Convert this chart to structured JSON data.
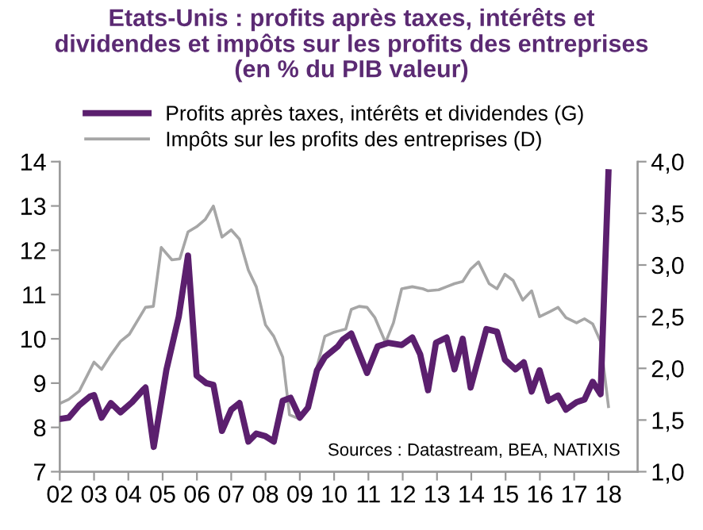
{
  "chart_data": {
    "type": "line",
    "title": "Etats-Unis : profits après taxes, intérêts et\ndividendes et impôts sur les profits des entreprises\n(en % du PIB valeur)",
    "annotations": [
      "Sources : Datastream, BEA, NATIXIS"
    ],
    "legend": "top",
    "grid": false,
    "marker": "none",
    "line_style": "solid",
    "xlim": [
      2002,
      2018.85
    ],
    "xticks": [
      {
        "value": 2002,
        "label": "02"
      },
      {
        "value": 2003,
        "label": "03"
      },
      {
        "value": 2004,
        "label": "04"
      },
      {
        "value": 2005,
        "label": "05"
      },
      {
        "value": 2006,
        "label": "06"
      },
      {
        "value": 2007,
        "label": "07"
      },
      {
        "value": 2008,
        "label": "08"
      },
      {
        "value": 2009,
        "label": "09"
      },
      {
        "value": 2010,
        "label": "10"
      },
      {
        "value": 2011,
        "label": "11"
      },
      {
        "value": 2012,
        "label": "12"
      },
      {
        "value": 2013,
        "label": "13"
      },
      {
        "value": 2014,
        "label": "14"
      },
      {
        "value": 2015,
        "label": "15"
      },
      {
        "value": 2016,
        "label": "16"
      },
      {
        "value": 2017,
        "label": "17"
      },
      {
        "value": 2018,
        "label": "18"
      }
    ],
    "ylim": [
      7,
      14
    ],
    "yticks": [
      7,
      8,
      9,
      10,
      11,
      12,
      13,
      14
    ],
    "y2lim": [
      1,
      4
    ],
    "y2ticks": [
      {
        "value": 1,
        "label": "1,0"
      },
      {
        "value": 1.5,
        "label": "1,5"
      },
      {
        "value": 2,
        "label": "2,0"
      },
      {
        "value": 2.5,
        "label": "2,5"
      },
      {
        "value": 3,
        "label": "3,0"
      },
      {
        "value": 3.5,
        "label": "3,5"
      },
      {
        "value": 4,
        "label": "4,0"
      }
    ],
    "series": [
      {
        "name": "Profits après taxes, intérêts et dividendes (G)",
        "color": "#5b1f6e",
        "axis": "y",
        "x": [
          2002.0,
          2002.26,
          2002.57,
          2002.88,
          2003.0,
          2003.22,
          2003.49,
          2003.77,
          2004.11,
          2004.42,
          2004.5,
          2004.74,
          2005.11,
          2005.47,
          2005.74,
          2005.99,
          2006.27,
          2006.48,
          2006.73,
          2007.0,
          2007.24,
          2007.5,
          2007.73,
          2008.0,
          2008.24,
          2008.5,
          2008.73,
          2009.0,
          2009.24,
          2009.5,
          2009.73,
          2010.11,
          2010.25,
          2010.5,
          2010.96,
          2011.27,
          2011.58,
          2011.97,
          2012.28,
          2012.51,
          2012.74,
          2012.97,
          2013.28,
          2013.51,
          2013.75,
          2013.98,
          2014.44,
          2014.75,
          2014.98,
          2015.29,
          2015.53,
          2015.76,
          2015.99,
          2016.25,
          2016.53,
          2016.76,
          2017.07,
          2017.3,
          2017.54,
          2017.77,
          2018.0
        ],
        "values": [
          8.19,
          8.22,
          8.5,
          8.7,
          8.73,
          8.22,
          8.55,
          8.34,
          8.57,
          8.84,
          8.9,
          7.56,
          9.3,
          10.5,
          11.88,
          9.17,
          9.0,
          8.96,
          7.92,
          8.4,
          8.55,
          7.68,
          7.86,
          7.8,
          7.68,
          8.6,
          8.67,
          8.22,
          8.45,
          9.29,
          9.59,
          9.83,
          9.98,
          10.12,
          9.23,
          9.83,
          9.91,
          9.86,
          10.03,
          9.65,
          8.84,
          9.91,
          10.03,
          9.31,
          10.0,
          8.9,
          10.22,
          10.16,
          9.53,
          9.31,
          9.47,
          8.81,
          9.29,
          8.6,
          8.72,
          8.4,
          8.57,
          8.63,
          9.03,
          8.75,
          13.76
        ]
      },
      {
        "name": "Impôts sur les profits des entreprises (D)",
        "color": "#a6a6a6",
        "axis": "y2",
        "x": [
          2002.0,
          2002.26,
          2002.57,
          2002.8,
          2003.0,
          2003.22,
          2003.49,
          2003.77,
          2004.03,
          2004.5,
          2004.73,
          2004.96,
          2005.27,
          2005.5,
          2005.74,
          2005.99,
          2006.24,
          2006.48,
          2006.73,
          2007.0,
          2007.24,
          2007.5,
          2007.73,
          2008.0,
          2008.24,
          2008.5,
          2008.7,
          2009.0,
          2009.24,
          2009.5,
          2009.73,
          2010.0,
          2010.11,
          2010.34,
          2010.5,
          2010.73,
          2010.96,
          2011.19,
          2011.5,
          2011.73,
          2011.97,
          2012.28,
          2012.59,
          2012.74,
          2013.05,
          2013.28,
          2013.51,
          2013.75,
          2013.98,
          2014.21,
          2014.52,
          2014.75,
          2014.98,
          2015.22,
          2015.5,
          2015.76,
          2015.99,
          2016.3,
          2016.53,
          2016.76,
          2017.07,
          2017.3,
          2017.54,
          2017.77,
          2018.0
        ],
        "values": [
          1.66,
          1.7,
          1.78,
          1.93,
          2.06,
          1.99,
          2.13,
          2.26,
          2.33,
          2.59,
          2.6,
          3.17,
          3.05,
          3.06,
          3.32,
          3.37,
          3.44,
          3.57,
          3.27,
          3.34,
          3.25,
          2.95,
          2.79,
          2.42,
          2.31,
          2.11,
          1.55,
          1.51,
          1.62,
          2.01,
          2.31,
          2.35,
          2.36,
          2.38,
          2.57,
          2.6,
          2.59,
          2.49,
          2.25,
          2.44,
          2.77,
          2.79,
          2.77,
          2.75,
          2.76,
          2.79,
          2.82,
          2.84,
          2.96,
          3.03,
          2.82,
          2.77,
          2.91,
          2.85,
          2.66,
          2.75,
          2.5,
          2.55,
          2.59,
          2.49,
          2.44,
          2.48,
          2.43,
          2.26,
          1.63
        ]
      }
    ]
  }
}
